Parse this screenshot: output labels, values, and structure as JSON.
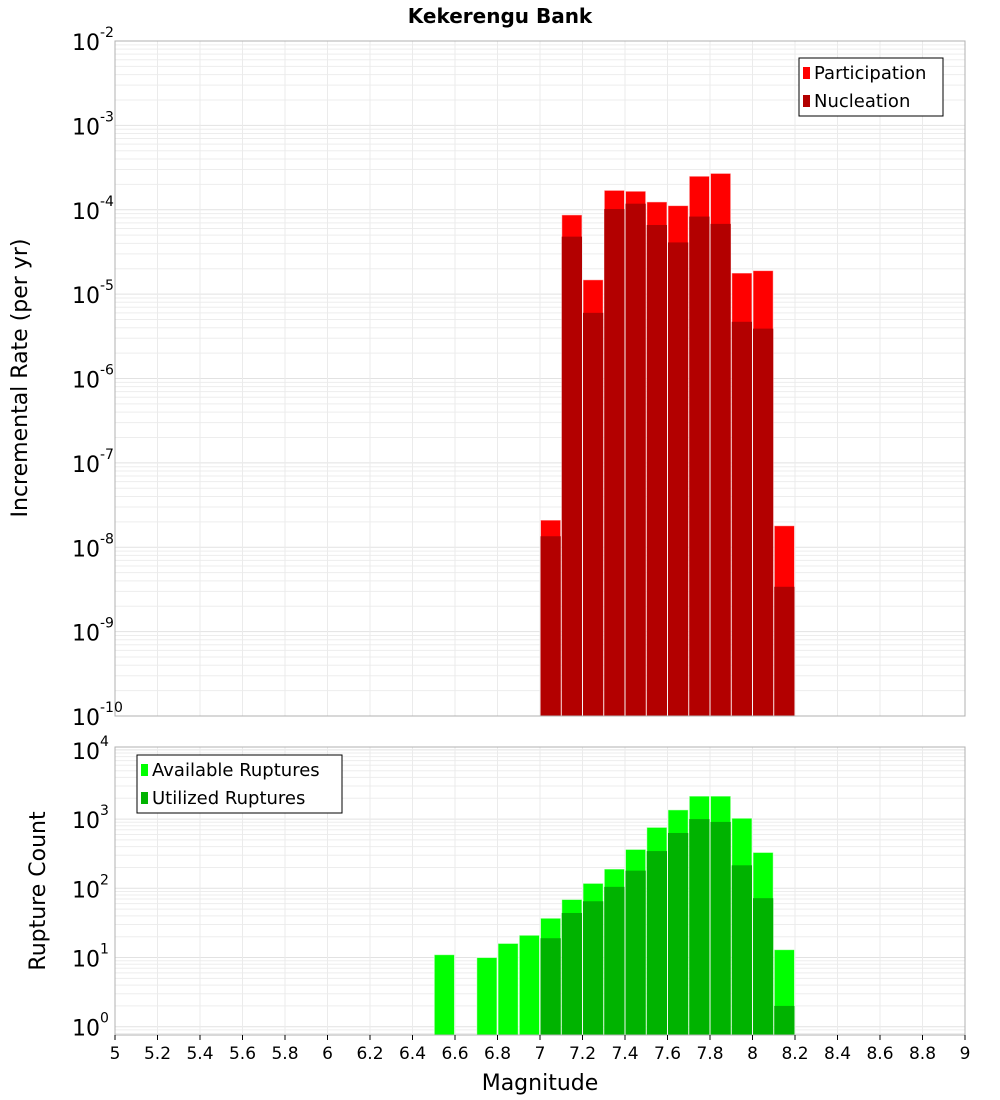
{
  "chart_data": [
    {
      "type": "bar",
      "title": "Kekerengu Bank",
      "xlabel": "",
      "ylabel": "Incremental Rate (per yr)",
      "yscale": "log",
      "ylim": [
        1e-10,
        0.01
      ],
      "xlim": [
        5,
        9
      ],
      "ytick_exponents": [
        -2,
        -3,
        -4,
        -5,
        -6,
        -7,
        -8,
        -9,
        -10
      ],
      "grid": true,
      "legend_position": "top-right",
      "bin_width": 0.1,
      "x": [
        7.05,
        7.15,
        7.25,
        7.35,
        7.45,
        7.55,
        7.65,
        7.75,
        7.85,
        7.95,
        8.05,
        8.15
      ],
      "series": [
        {
          "name": "Participation",
          "color": "#ff0000",
          "values": [
            2.1e-08,
            8.7e-05,
            1.48e-05,
            0.00017,
            0.000166,
            0.000124,
            0.000112,
            0.00025,
            0.00027,
            1.78e-05,
            1.9e-05,
            1.8e-08
          ]
        },
        {
          "name": "Nucleation",
          "color": "#b30000",
          "values": [
            1.35e-08,
            4.8e-05,
            6e-06,
            0.000102,
            0.000118,
            6.6e-05,
            4.1e-05,
            8.3e-05,
            6.8e-05,
            4.7e-06,
            3.9e-06,
            3.4e-09
          ]
        }
      ]
    },
    {
      "type": "bar",
      "title": "",
      "xlabel": "Magnitude",
      "ylabel": "Rupture Count",
      "yscale": "log",
      "ylim": [
        0.76,
        11000
      ],
      "xlim": [
        5,
        9
      ],
      "ytick_exponents": [
        4,
        3,
        2,
        1,
        0
      ],
      "xticks": [
        "5",
        "5.2",
        "5.4",
        "5.6",
        "5.8",
        "6",
        "6.2",
        "6.4",
        "6.6",
        "6.8",
        "7",
        "7.2",
        "7.4",
        "7.6",
        "7.8",
        "8",
        "8.2",
        "8.4",
        "8.6",
        "8.8",
        "9"
      ],
      "grid": true,
      "legend_position": "top-left",
      "bin_width": 0.1,
      "x": [
        6.55,
        6.75,
        6.85,
        6.95,
        7.05,
        7.15,
        7.25,
        7.35,
        7.45,
        7.55,
        7.65,
        7.75,
        7.85,
        7.95,
        8.05,
        8.15
      ],
      "series": [
        {
          "name": "Available Ruptures",
          "color": "#00ff00",
          "values": [
            11,
            10,
            16,
            21,
            37,
            69,
            118,
            190,
            365,
            760,
            1360,
            2150,
            2150,
            1030,
            330,
            13
          ]
        },
        {
          "name": "Utilized Ruptures",
          "color": "#00b300",
          "values": [
            0,
            0,
            0,
            0,
            19,
            44,
            65,
            105,
            180,
            345,
            630,
            1000,
            910,
            215,
            72,
            2
          ]
        }
      ]
    }
  ]
}
